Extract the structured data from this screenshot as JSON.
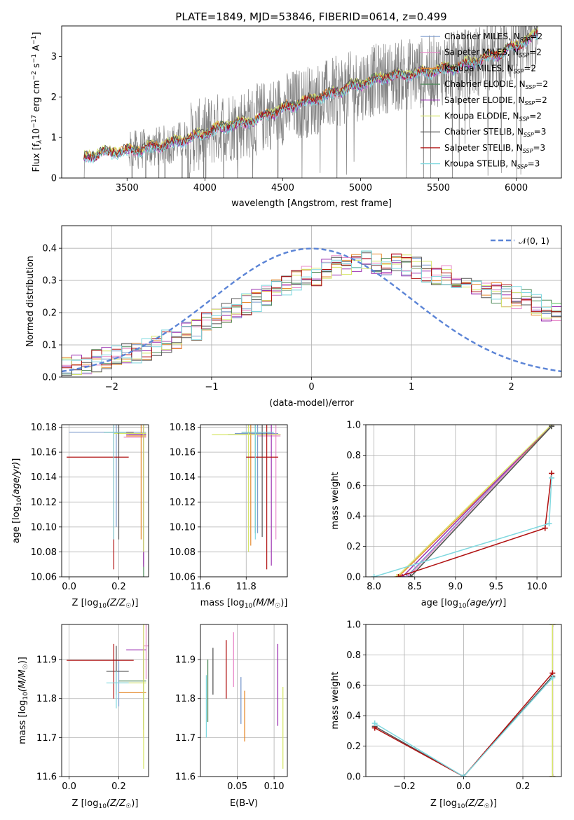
{
  "title": "PLATE=1849, MJD=53846, FIBERID=0614, z=0.499",
  "colors": {
    "Chabrier MILES": "#7b9acc",
    "Salpeter MILES": "#e88ac9",
    "Kroupa MILES": "#e68a2e",
    "Chabrier ELODIE": "#4f8a5a",
    "Salpeter ELODIE": "#9b30b0",
    "Kroupa ELODIE": "#d6e66a",
    "Chabrier STELIB": "#555555",
    "Salpeter STELIB": "#b01010",
    "Kroupa STELIB": "#7fd8df",
    "data": "#808080",
    "gauss": "#5b84d6"
  },
  "legend_labels": {
    "l0": "Chabrier MILES, N",
    "l1": "Salpeter MILES, N",
    "l2": "Kroupa MILES, N",
    "l3": "Chabrier ELODIE, N",
    "l4": "Salpeter ELODIE, N",
    "l5": "Kroupa ELODIE, N",
    "l6": "Chabrier STELIB, N",
    "l7": "Salpeter STELIB, N",
    "l8": "Kroupa STELIB, N",
    "ssp_sub": "SSP",
    "n2": "=2",
    "n3": "=3",
    "gauss_label": "𝒩(0, 1)"
  },
  "chart_data": [
    {
      "id": "spectrum",
      "type": "line",
      "xlabel": "wavelength [Angstrom, rest frame]",
      "ylabel_parts": [
        "Flux [f",
        "λ",
        "10",
        "−17",
        " erg cm",
        "−2",
        " s",
        "−1",
        " A",
        "−1",
        "]"
      ],
      "xlim": [
        3080,
        6290
      ],
      "ylim": [
        0,
        3.75
      ],
      "xticks": [
        3500,
        4000,
        4500,
        5000,
        5500,
        6000
      ],
      "yticks": [
        0,
        1,
        2,
        3
      ],
      "data_range": [
        3220,
        6140
      ],
      "model_shape": [
        [
          3220,
          0.0
        ],
        [
          3225,
          0.48
        ],
        [
          3260,
          0.55
        ],
        [
          3350,
          0.62
        ],
        [
          3500,
          0.66
        ],
        [
          3650,
          0.74
        ],
        [
          3800,
          0.86
        ],
        [
          3950,
          1.05
        ],
        [
          4000,
          1.1
        ],
        [
          4100,
          1.25
        ],
        [
          4200,
          1.32
        ],
        [
          4300,
          1.38
        ],
        [
          4400,
          1.55
        ],
        [
          4500,
          1.7
        ],
        [
          4600,
          1.83
        ],
        [
          4700,
          1.93
        ],
        [
          4800,
          2.05
        ],
        [
          4900,
          2.2
        ],
        [
          5000,
          2.3
        ],
        [
          5100,
          2.42
        ],
        [
          5200,
          2.52
        ],
        [
          5300,
          2.55
        ],
        [
          5400,
          2.6
        ],
        [
          5500,
          2.65
        ],
        [
          5600,
          2.72
        ],
        [
          5700,
          2.82
        ],
        [
          5800,
          2.95
        ],
        [
          5900,
          3.08
        ],
        [
          6000,
          3.25
        ],
        [
          6100,
          3.45
        ],
        [
          6140,
          3.55
        ]
      ],
      "series": [
        {
          "name": "Chabrier MILES",
          "nssp": 2
        },
        {
          "name": "Salpeter MILES",
          "nssp": 2
        },
        {
          "name": "Kroupa MILES",
          "nssp": 2
        },
        {
          "name": "Chabrier ELODIE",
          "nssp": 2
        },
        {
          "name": "Salpeter ELODIE",
          "nssp": 2
        },
        {
          "name": "Kroupa ELODIE",
          "nssp": 2
        },
        {
          "name": "Chabrier STELIB",
          "nssp": 3
        },
        {
          "name": "Salpeter STELIB",
          "nssp": 3
        },
        {
          "name": "Kroupa STELIB",
          "nssp": 3
        }
      ]
    },
    {
      "id": "residual_hist",
      "type": "histogram",
      "xlabel": "(data-model)/error",
      "ylabel": "Normed distribution",
      "xlim": [
        -2.5,
        2.5
      ],
      "ylim": [
        0,
        0.47
      ],
      "xticks": [
        -2,
        -1,
        0,
        1,
        2
      ],
      "yticks": [
        0.0,
        0.1,
        0.2,
        0.3,
        0.4
      ],
      "bin_start": -2.5,
      "bin_width": 0.1,
      "base_profile": [
        0.03,
        0.035,
        0.04,
        0.05,
        0.055,
        0.06,
        0.07,
        0.075,
        0.085,
        0.1,
        0.11,
        0.12,
        0.135,
        0.15,
        0.165,
        0.18,
        0.2,
        0.21,
        0.225,
        0.24,
        0.255,
        0.27,
        0.285,
        0.3,
        0.31,
        0.32,
        0.33,
        0.34,
        0.345,
        0.35,
        0.355,
        0.355,
        0.35,
        0.35,
        0.345,
        0.34,
        0.33,
        0.32,
        0.31,
        0.3,
        0.29,
        0.28,
        0.27,
        0.265,
        0.255,
        0.245,
        0.235,
        0.22,
        0.21,
        0.2,
        0.185,
        0.17,
        0.16,
        0.145,
        0.135,
        0.12,
        0.11,
        0.1,
        0.09,
        0.08,
        0.075,
        0.07,
        0.065,
        0.06,
        0.055,
        0.05,
        0.045,
        0.045,
        0.04,
        0.04,
        0.04,
        0.035,
        0.035,
        0.035,
        0.03,
        0.03,
        0.03,
        0.03
      ],
      "gauss_label": "𝒩(0, 1)"
    },
    {
      "id": "age_vs_Z",
      "type": "errorbar",
      "xlabel": "Z [log10(Z/Z☉)]",
      "ylabel": "age [log10(age/yr)]",
      "xlim": [
        -0.03,
        0.32
      ],
      "ylim": [
        10.06,
        10.182
      ],
      "xticks": [
        0.0,
        0.2
      ],
      "yticks": [
        10.06,
        10.08,
        10.1,
        10.12,
        10.14,
        10.16,
        10.18
      ],
      "points": [
        {
          "series": "Chabrier MILES",
          "x": 0.19,
          "xlo": 0.0,
          "xhi": 0.31,
          "y": 10.176,
          "ylo": 10.1,
          "yhi": 10.182
        },
        {
          "series": "Salpeter MILES",
          "x": 0.3,
          "xlo": 0.22,
          "xhi": 0.31,
          "y": 10.172,
          "ylo": 10.07,
          "yhi": 10.182
        },
        {
          "series": "Kroupa MILES",
          "x": 0.29,
          "xlo": 0.23,
          "xhi": 0.31,
          "y": 10.173,
          "ylo": 10.09,
          "yhi": 10.182
        },
        {
          "series": "Chabrier ELODIE",
          "x": 0.3,
          "xlo": 0.24,
          "xhi": 0.31,
          "y": 10.174,
          "ylo": 10.06,
          "yhi": 10.182
        },
        {
          "series": "Salpeter ELODIE",
          "x": 0.3,
          "xlo": 0.23,
          "xhi": 0.31,
          "y": 10.174,
          "ylo": 10.068,
          "yhi": 10.182
        },
        {
          "series": "Kroupa ELODIE",
          "x": 0.3,
          "xlo": 0.18,
          "xhi": 0.31,
          "y": 10.175,
          "ylo": 10.08,
          "yhi": 10.182
        },
        {
          "series": "Chabrier STELIB",
          "x": 0.2,
          "xlo": 0.14,
          "xhi": 0.26,
          "y": 10.176,
          "ylo": 10.09,
          "yhi": 10.182
        },
        {
          "series": "Salpeter STELIB",
          "x": 0.18,
          "xlo": -0.01,
          "xhi": 0.24,
          "y": 10.156,
          "ylo": 10.066,
          "yhi": 10.182
        },
        {
          "series": "Kroupa STELIB",
          "x": 0.18,
          "xlo": 0.14,
          "xhi": 0.23,
          "y": 10.176,
          "ylo": 10.09,
          "yhi": 10.182
        }
      ]
    },
    {
      "id": "age_vs_mass",
      "type": "errorbar",
      "xlabel": "mass [log10(M/M☉)]",
      "ylabel": "",
      "xlim": [
        11.6,
        11.98
      ],
      "ylim": [
        10.06,
        10.182
      ],
      "xticks": [
        11.6,
        11.8
      ],
      "yticks": [
        10.06,
        10.08,
        10.1,
        10.12,
        10.14,
        10.16,
        10.18
      ],
      "points": [
        {
          "series": "Chabrier MILES",
          "x": 11.85,
          "xlo": 11.75,
          "xhi": 11.94,
          "y": 10.175,
          "ylo": 10.095,
          "yhi": 10.182
        },
        {
          "series": "Salpeter MILES",
          "x": 11.93,
          "xlo": 11.85,
          "xhi": 11.95,
          "y": 10.173,
          "ylo": 10.09,
          "yhi": 10.182
        },
        {
          "series": "Kroupa MILES",
          "x": 11.82,
          "xlo": 11.75,
          "xhi": 11.92,
          "y": 10.174,
          "ylo": 10.085,
          "yhi": 10.182
        },
        {
          "series": "Chabrier ELODIE",
          "x": 11.84,
          "xlo": 11.72,
          "xhi": 11.92,
          "y": 10.174,
          "ylo": 10.095,
          "yhi": 10.182
        },
        {
          "series": "Salpeter ELODIE",
          "x": 11.91,
          "xlo": 11.82,
          "xhi": 11.95,
          "y": 10.174,
          "ylo": 10.069,
          "yhi": 10.182
        },
        {
          "series": "Kroupa ELODIE",
          "x": 11.81,
          "xlo": 11.65,
          "xhi": 11.95,
          "y": 10.174,
          "ylo": 10.08,
          "yhi": 10.182
        },
        {
          "series": "Chabrier STELIB",
          "x": 11.87,
          "xlo": 11.78,
          "xhi": 11.92,
          "y": 10.176,
          "ylo": 10.092,
          "yhi": 10.182
        },
        {
          "series": "Salpeter STELIB",
          "x": 11.89,
          "xlo": 11.8,
          "xhi": 11.94,
          "y": 10.156,
          "ylo": 10.066,
          "yhi": 10.182
        },
        {
          "series": "Kroupa STELIB",
          "x": 11.84,
          "xlo": 11.78,
          "xhi": 11.92,
          "y": 10.176,
          "ylo": 10.09,
          "yhi": 10.182
        }
      ]
    },
    {
      "id": "weight_vs_age",
      "type": "line",
      "xlabel": "age [log10(age/yr)]",
      "ylabel": "mass weight",
      "xlim": [
        7.9,
        10.3
      ],
      "ylim": [
        0,
        1
      ],
      "xticks": [
        8.0,
        8.5,
        9.0,
        9.5,
        10.0
      ],
      "yticks": [
        0.0,
        0.2,
        0.4,
        0.6,
        0.8,
        1.0
      ],
      "series": [
        {
          "name": "Chabrier MILES",
          "x": [
            8.4,
            10.18
          ],
          "y": [
            0.0,
            1.0
          ]
        },
        {
          "name": "Salpeter MILES",
          "x": [
            8.42,
            10.18
          ],
          "y": [
            0.0,
            1.0
          ]
        },
        {
          "name": "Kroupa MILES",
          "x": [
            8.3,
            10.18
          ],
          "y": [
            0.0,
            0.99
          ]
        },
        {
          "name": "Chabrier ELODIE",
          "x": [
            8.45,
            10.18
          ],
          "y": [
            0.0,
            0.99
          ]
        },
        {
          "name": "Salpeter ELODIE",
          "x": [
            8.35,
            10.18
          ],
          "y": [
            0.0,
            1.0
          ]
        },
        {
          "name": "Kroupa ELODIE",
          "x": [
            8.28,
            10.18
          ],
          "y": [
            0.0,
            1.0
          ]
        },
        {
          "name": "Chabrier STELIB",
          "x": [
            8.45,
            10.18
          ],
          "y": [
            0.0,
            0.99
          ]
        },
        {
          "name": "Salpeter STELIB",
          "x": [
            8.3,
            10.1,
            10.18
          ],
          "y": [
            0.0,
            0.32,
            0.68
          ]
        },
        {
          "name": "Kroupa STELIB",
          "x": [
            8.0,
            10.15,
            10.18
          ],
          "y": [
            0.0,
            0.35,
            0.65
          ]
        }
      ]
    },
    {
      "id": "mass_vs_Z",
      "type": "errorbar",
      "xlabel": "Z [log10(Z/Z☉)]",
      "ylabel": "mass [log10(M/M☉)]",
      "xlim": [
        -0.03,
        0.32
      ],
      "ylim": [
        11.6,
        11.99
      ],
      "xticks": [
        0.0,
        0.2
      ],
      "yticks": [
        11.6,
        11.7,
        11.8,
        11.9
      ],
      "points": [
        {
          "series": "Chabrier MILES",
          "x": 0.2,
          "xlo": 0.18,
          "xhi": 0.3,
          "y": 11.84,
          "ylo": 11.78,
          "yhi": 11.9
        },
        {
          "series": "Salpeter MILES",
          "x": 0.31,
          "xlo": 0.3,
          "xhi": 0.32,
          "y": 11.935,
          "ylo": 11.85,
          "yhi": 11.99
        },
        {
          "series": "Kroupa MILES",
          "x": 0.3,
          "xlo": 0.2,
          "xhi": 0.31,
          "y": 11.815,
          "ylo": 11.7,
          "yhi": 11.9
        },
        {
          "series": "Chabrier ELODIE",
          "x": 0.3,
          "xlo": 0.2,
          "xhi": 0.31,
          "y": 11.845,
          "ylo": 11.72,
          "yhi": 11.93
        },
        {
          "series": "Salpeter ELODIE",
          "x": 0.3,
          "xlo": 0.23,
          "xhi": 0.31,
          "y": 11.925,
          "ylo": 11.85,
          "yhi": 11.99
        },
        {
          "series": "Kroupa ELODIE",
          "x": 0.3,
          "xlo": 0.2,
          "xhi": 0.31,
          "y": 11.84,
          "ylo": 11.62,
          "yhi": 11.99
        },
        {
          "series": "Chabrier STELIB",
          "x": 0.19,
          "xlo": 0.15,
          "xhi": 0.24,
          "y": 11.87,
          "ylo": 11.81,
          "yhi": 11.935
        },
        {
          "series": "Salpeter STELIB",
          "x": 0.18,
          "xlo": -0.01,
          "xhi": 0.26,
          "y": 11.898,
          "ylo": 11.8,
          "yhi": 11.94
        },
        {
          "series": "Kroupa STELIB",
          "x": 0.19,
          "xlo": 0.15,
          "xhi": 0.24,
          "y": 11.84,
          "ylo": 11.775,
          "yhi": 11.87
        }
      ]
    },
    {
      "id": "mass_vs_ebv",
      "type": "errorbar",
      "xlabel": "E(B-V)",
      "ylabel": "",
      "xlim": [
        0.0,
        0.118
      ],
      "ylim": [
        11.6,
        11.99
      ],
      "xticks": [
        0.05,
        0.1
      ],
      "yticks": [
        11.6,
        11.7,
        11.8,
        11.9
      ],
      "segments": [
        {
          "series": "Chabrier MILES",
          "x": 0.055,
          "ylo": 11.735,
          "yhi": 11.855
        },
        {
          "series": "Salpeter MILES",
          "x": 0.045,
          "ylo": 11.83,
          "yhi": 11.97
        },
        {
          "series": "Kroupa MILES",
          "x": 0.06,
          "ylo": 11.69,
          "yhi": 11.82
        },
        {
          "series": "Chabrier ELODIE",
          "x": 0.01,
          "ylo": 11.74,
          "yhi": 11.9
        },
        {
          "series": "Salpeter ELODIE",
          "x": 0.105,
          "ylo": 11.73,
          "yhi": 11.94
        },
        {
          "series": "Kroupa ELODIE",
          "x": 0.112,
          "ylo": 11.62,
          "yhi": 11.83
        },
        {
          "series": "Chabrier STELIB",
          "x": 0.017,
          "ylo": 11.81,
          "yhi": 11.93
        },
        {
          "series": "Salpeter STELIB",
          "x": 0.035,
          "ylo": 11.8,
          "yhi": 11.95
        },
        {
          "series": "Kroupa STELIB",
          "x": 0.008,
          "ylo": 11.7,
          "yhi": 11.86
        }
      ]
    },
    {
      "id": "weight_vs_Z",
      "type": "line",
      "xlabel": "Z [log10(Z/Z☉)]",
      "ylabel": "mass weight",
      "xlim": [
        -0.33,
        0.33
      ],
      "ylim": [
        0,
        1
      ],
      "xticks": [
        -0.2,
        0.0,
        0.2
      ],
      "yticks": [
        0.0,
        0.2,
        0.4,
        0.6,
        0.8,
        1.0
      ],
      "series": [
        {
          "name": "Chabrier MILES",
          "x": [
            0.3,
            0.3
          ],
          "y": [
            0.0,
            1.0
          ]
        },
        {
          "name": "Salpeter MILES",
          "x": [
            0.3,
            0.3
          ],
          "y": [
            0.0,
            1.0
          ]
        },
        {
          "name": "Kroupa MILES",
          "x": [
            0.3,
            0.3
          ],
          "y": [
            0.0,
            1.0
          ]
        },
        {
          "name": "Chabrier ELODIE",
          "x": [
            0.3,
            0.3
          ],
          "y": [
            0.0,
            1.0
          ]
        },
        {
          "name": "Salpeter ELODIE",
          "x": [
            0.3,
            0.3
          ],
          "y": [
            0.0,
            1.0
          ]
        },
        {
          "name": "Kroupa ELODIE",
          "x": [
            0.3,
            0.3
          ],
          "y": [
            0.0,
            1.0
          ]
        },
        {
          "name": "Chabrier STELIB",
          "x": [
            -0.3,
            0.0,
            0.3
          ],
          "y": [
            0.33,
            0.0,
            0.66
          ]
        },
        {
          "name": "Salpeter STELIB",
          "x": [
            -0.3,
            0.0,
            0.3
          ],
          "y": [
            0.32,
            0.0,
            0.68
          ]
        },
        {
          "name": "Kroupa STELIB",
          "x": [
            -0.3,
            0.0,
            0.3
          ],
          "y": [
            0.35,
            0.0,
            0.65
          ]
        }
      ]
    }
  ]
}
